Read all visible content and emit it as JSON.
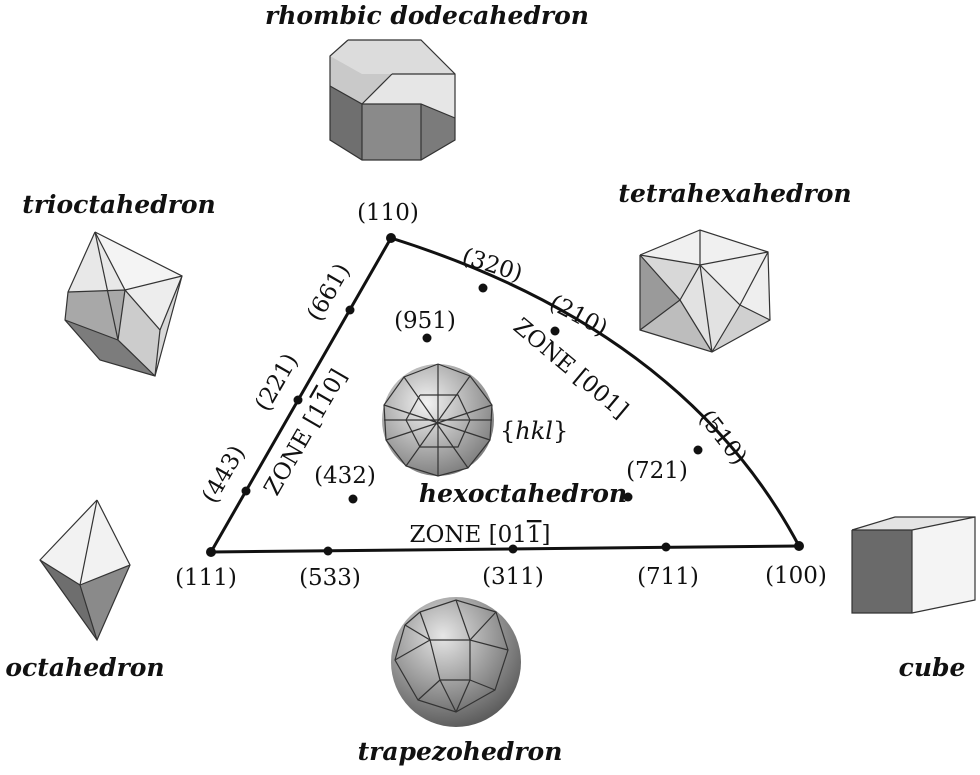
{
  "shapes": {
    "rhombic_dodecahedron": "rhombic dodecahedron",
    "tetrahexahedron": "tetrahexahedron",
    "trioctahedron": "trioctahedron",
    "octahedron": "octahedron",
    "cube": "cube",
    "trapezohedron": "trapezohedron",
    "hexoctahedron": "hexoctahedron"
  },
  "family": {
    "open": "{",
    "label": "hkl",
    "close": "}"
  },
  "vertices": {
    "v110": "(110)",
    "v111": "(111)",
    "v100": "(100)"
  },
  "edge_points": {
    "p320": "(320)",
    "p210": "(210)",
    "p510": "(510)",
    "p661": "(661)",
    "p221": "(221)",
    "p443": "(443)",
    "p533": "(533)",
    "p311": "(311)",
    "p711": "(711)"
  },
  "interior_points": {
    "p951": "(951)",
    "p432": "(432)",
    "p721": "(721)"
  },
  "zones": {
    "z001_prefix": "ZONE [001]",
    "z1m10_prefix": "ZONE [1",
    "z1m10_bar": "1",
    "z1m10_suffix": "0]",
    "z01m1_prefix": "ZONE [01",
    "z01m1_bar": "1",
    "z01m1_suffix": "]"
  },
  "colors": {
    "line": "#111111",
    "face_light": "#ececec",
    "face_mid": "#bdbdbd",
    "face_dark": "#707070"
  }
}
